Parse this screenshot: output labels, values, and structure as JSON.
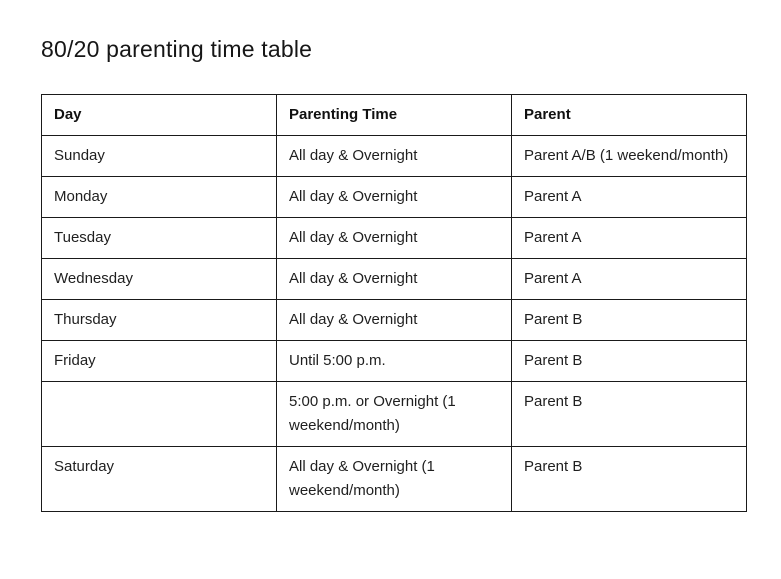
{
  "page": {
    "title": "80/20 parenting time table"
  },
  "table": {
    "columns": [
      "Day",
      "Parenting Time",
      "Parent"
    ],
    "rows": [
      {
        "day": "Sunday",
        "parenting_time": "All day & Overnight",
        "parent": "Parent A/B (1 weekend/month)"
      },
      {
        "day": "Monday",
        "parenting_time": "All day & Overnight",
        "parent": "Parent A"
      },
      {
        "day": "Tuesday",
        "parenting_time": "All day & Overnight",
        "parent": "Parent A"
      },
      {
        "day": "Wednesday",
        "parenting_time": "All day & Overnight",
        "parent": "Parent A"
      },
      {
        "day": "Thursday",
        "parenting_time": "All day & Overnight",
        "parent": "Parent B"
      },
      {
        "day": "Friday",
        "parenting_time": "Until 5:00 p.m.",
        "parent": "Parent B"
      },
      {
        "day": "",
        "parenting_time": "5:00 p.m. or Overnight (1 weekend/month)",
        "parent": "Parent B"
      },
      {
        "day": "Saturday",
        "parenting_time": "All day & Overnight (1 weekend/month)",
        "parent": "Parent B"
      }
    ]
  },
  "colors": {
    "background": "#ffffff",
    "text": "#1f1f1f",
    "border": "#1a1a1a"
  }
}
